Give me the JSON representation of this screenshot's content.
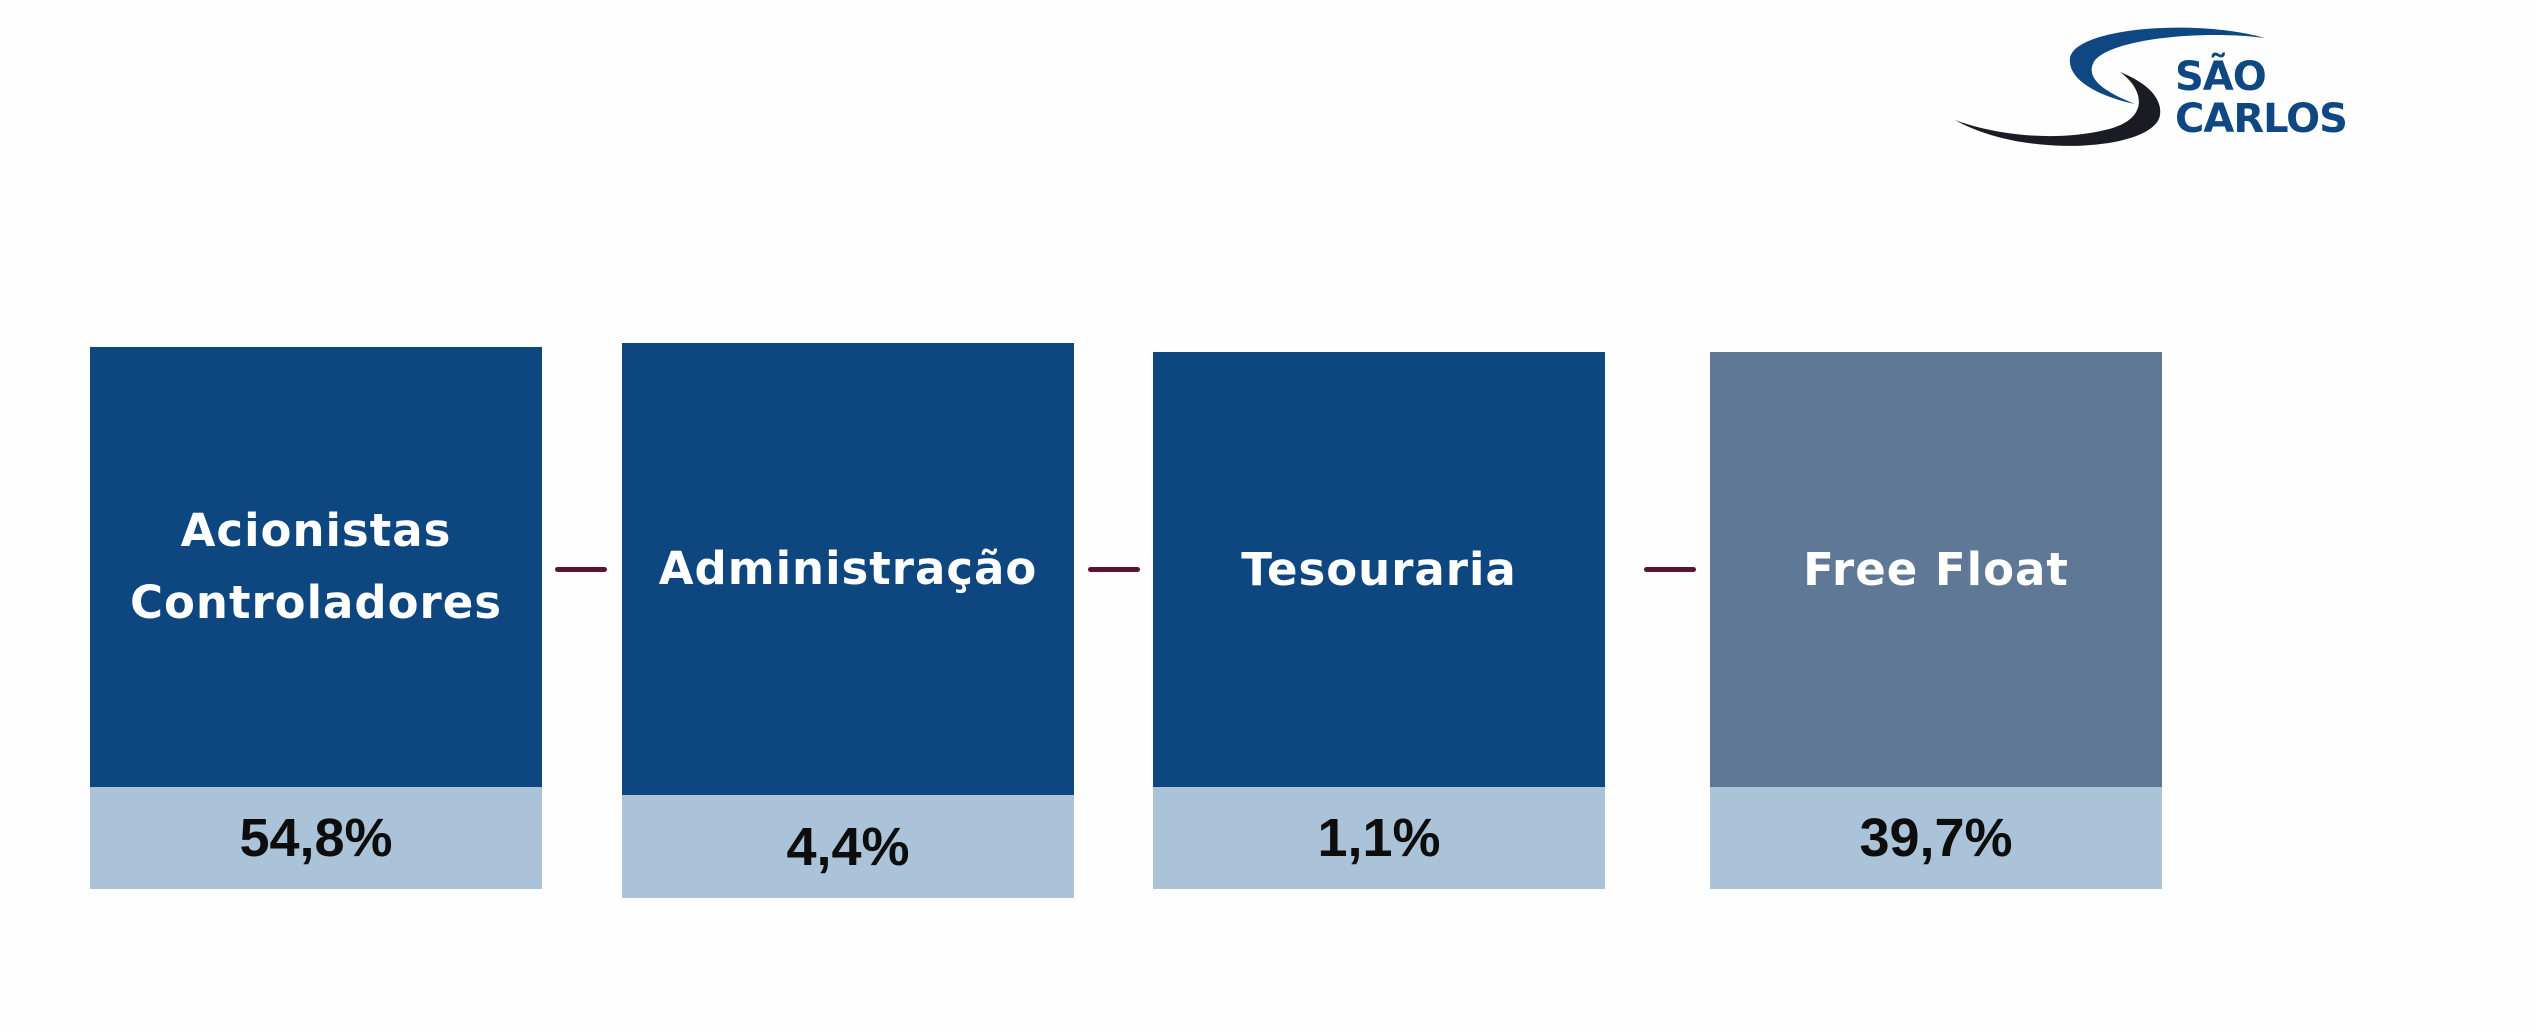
{
  "logo": {
    "line1": "SÃO",
    "line2": "CARLOS"
  },
  "colors": {
    "box_primary": "#0e4780",
    "box_secondary": "#5e7896",
    "value_band": "#abc3d9",
    "connector": "#5e1236"
  },
  "boxes": [
    {
      "label_lines": [
        "Acionistas",
        "Controladores"
      ],
      "value": "54,8%"
    },
    {
      "label_lines": [
        "Administração"
      ],
      "value": "4,4%"
    },
    {
      "label_lines": [
        "Tesouraria"
      ],
      "value": "1,1%"
    },
    {
      "label_lines": [
        "Free Float"
      ],
      "value": "39,7%"
    }
  ]
}
